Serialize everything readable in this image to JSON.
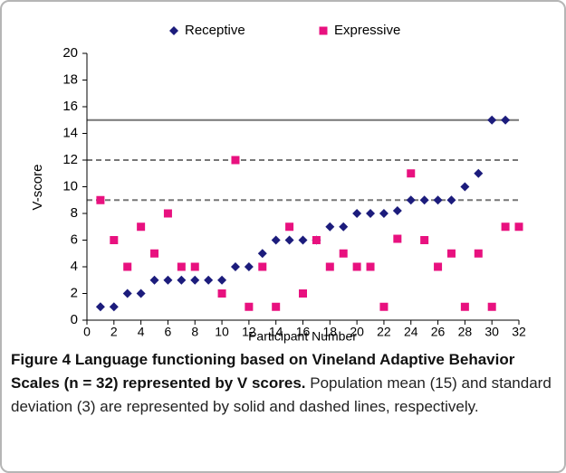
{
  "chart_data": {
    "type": "scatter",
    "x_label": "Participant Number",
    "y_label": "V-score",
    "xlim": [
      0,
      32
    ],
    "xticks": [
      0,
      2,
      4,
      6,
      8,
      10,
      12,
      14,
      16,
      18,
      20,
      22,
      24,
      26,
      28,
      30,
      32
    ],
    "ylim": [
      0,
      20
    ],
    "yticks": [
      0,
      2,
      4,
      6,
      8,
      10,
      12,
      14,
      16,
      18,
      20
    ],
    "legend": "top",
    "reference_lines": [
      {
        "value": 15,
        "style": "solid"
      },
      {
        "value": 12,
        "style": "dashed"
      },
      {
        "value": 9,
        "style": "dashed"
      }
    ],
    "series": [
      {
        "name": "Receptive",
        "color": "#1c1c7c",
        "marker": "diamond",
        "x": [
          1,
          2,
          3,
          4,
          5,
          6,
          7,
          8,
          9,
          10,
          11,
          12,
          13,
          14,
          15,
          16,
          17,
          18,
          19,
          20,
          21,
          22,
          23,
          24,
          25,
          26,
          27,
          28,
          29,
          30,
          31
        ],
        "values": [
          1,
          1,
          2,
          2,
          3,
          3,
          3,
          3,
          3,
          3,
          4,
          4,
          5,
          6,
          6,
          6,
          6,
          7,
          7,
          8,
          8,
          8,
          8.2,
          9,
          9,
          9,
          9,
          10,
          11,
          15,
          15
        ]
      },
      {
        "name": "Expressive",
        "color": "#e8117f",
        "marker": "square",
        "x": [
          1,
          2,
          3,
          4,
          5,
          6,
          7,
          8,
          10,
          11,
          12,
          13,
          14,
          15,
          16,
          17,
          18,
          19,
          20,
          21,
          22,
          23,
          24,
          25,
          26,
          27,
          28,
          29,
          30,
          31,
          32
        ],
        "values": [
          9,
          6,
          4,
          7,
          5,
          8,
          4,
          4,
          2,
          12,
          1,
          4,
          1,
          7,
          2,
          6,
          4,
          5,
          4,
          4,
          1,
          6.1,
          11,
          6,
          4,
          5,
          1,
          5,
          1,
          7,
          7
        ]
      }
    ]
  },
  "caption": {
    "bold": "Figure 4 Language functioning based on Vineland Adaptive Behavior Scales (n = 32) represented by V scores.",
    "text": "Population mean (15) and standard deviation (3) are represented by solid and dashed lines, respectively."
  }
}
